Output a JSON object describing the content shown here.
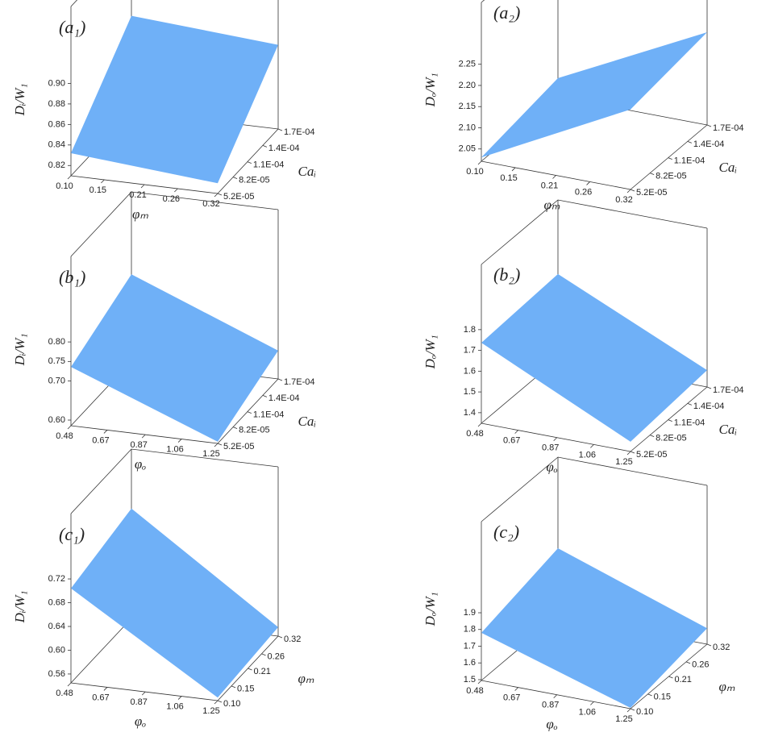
{
  "chart_data": [
    {
      "type": "surface",
      "title": "(a₁)",
      "xlabel": "φₘ",
      "ylabel": "Caᵢ",
      "zlabel": "Dᵢ/W₁",
      "color": "#6fb0f7",
      "xlim": [
        0.1,
        0.32
      ],
      "xticks": [
        {
          "value": 0.1,
          "label": "0.10"
        },
        0.15,
        0.21,
        0.26,
        0.32
      ],
      "ylim": [
        5.2e-05,
        0.00017
      ],
      "yticks": [
        {
          "value": 5.2e-05,
          "label": "5.2E-05"
        },
        {
          "value": 8.2e-05,
          "label": "8.2E-05"
        },
        {
          "value": 0.00011,
          "label": "1.1E-04"
        },
        {
          "value": 0.00014,
          "label": "1.4E-04"
        },
        {
          "value": 0.00017,
          "label": "1.7E-04"
        }
      ],
      "zlim": [
        0.81,
        0.975
      ],
      "zticks": [
        0.82,
        0.84,
        0.86,
        0.88,
        {
          "value": 0.9,
          "label": "0.90"
        }
      ],
      "values": [
        0.832,
        0.82,
        0.892,
        0.903
      ]
    },
    {
      "type": "surface",
      "title": "(a₂)",
      "xlabel": "φₘ",
      "ylabel": "Caᵢ",
      "zlabel": "Dₒ/W₁",
      "color": "#6fb0f7",
      "xlim": [
        0.1,
        0.32
      ],
      "xticks": [
        {
          "value": 0.1,
          "label": "0.10"
        },
        0.15,
        0.21,
        0.26,
        0.32
      ],
      "ylim": [
        5.2e-05,
        0.00017
      ],
      "yticks": [
        {
          "value": 5.2e-05,
          "label": "5.2E-05"
        },
        {
          "value": 8.2e-05,
          "label": "8.2E-05"
        },
        {
          "value": 0.00011,
          "label": "1.1E-04"
        },
        {
          "value": 0.00014,
          "label": "1.4E-04"
        },
        {
          "value": 0.00017,
          "label": "1.7E-04"
        }
      ],
      "zlim": [
        2.021,
        2.396
      ],
      "zticks": [
        2.05,
        {
          "value": 2.1,
          "label": "2.10"
        },
        2.15,
        {
          "value": 2.2,
          "label": "2.20"
        },
        2.25
      ],
      "values": [
        2.03,
        2.21,
        2.24,
        2.065
      ]
    },
    {
      "type": "surface",
      "title": "(b₁)",
      "xlabel": "φₒ",
      "ylabel": "Caᵢ",
      "zlabel": "Dᵢ/W₁",
      "color": "#6fb0f7",
      "xlim": [
        0.48,
        1.25
      ],
      "xticks": [
        0.48,
        0.67,
        0.87,
        1.06,
        1.25
      ],
      "ylim": [
        5.2e-05,
        0.00017
      ],
      "yticks": [
        {
          "value": 5.2e-05,
          "label": "5.2E-05"
        },
        {
          "value": 8.2e-05,
          "label": "8.2E-05"
        },
        {
          "value": 0.00011,
          "label": "1.1E-04"
        },
        {
          "value": 0.00014,
          "label": "1.4E-04"
        },
        {
          "value": 0.00017,
          "label": "1.7E-04"
        }
      ],
      "zlim": [
        0.5856,
        1.019
      ],
      "zticks": [
        {
          "value": 0.6,
          "label": "0.60"
        },
        {
          "value": 0.7,
          "label": "0.70"
        },
        0.75,
        {
          "value": 0.8,
          "label": "0.80"
        }
      ],
      "values": [
        0.736,
        0.59,
        0.658,
        0.808
      ]
    },
    {
      "type": "surface",
      "title": "(b₂)",
      "xlabel": "φₒ",
      "ylabel": "Caᵢ",
      "zlabel": "Dₒ/W₁",
      "color": "#6fb0f7",
      "xlim": [
        0.48,
        1.25
      ],
      "xticks": [
        0.48,
        0.67,
        0.87,
        1.06,
        1.25
      ],
      "ylim": [
        5.2e-05,
        0.00017
      ],
      "yticks": [
        {
          "value": 5.2e-05,
          "label": "5.2E-05"
        },
        {
          "value": 8.2e-05,
          "label": "8.2E-05"
        },
        {
          "value": 0.00011,
          "label": "1.1E-04"
        },
        {
          "value": 0.00014,
          "label": "1.4E-04"
        },
        {
          "value": 0.00017,
          "label": "1.7E-04"
        }
      ],
      "zlim": [
        1.349,
        2.114
      ],
      "zticks": [
        1.4,
        1.5,
        1.6,
        1.7,
        1.8
      ],
      "values": [
        1.737,
        1.396,
        1.43,
        1.757
      ]
    },
    {
      "type": "surface",
      "title": "(c₁)",
      "xlabel": "φₒ",
      "ylabel": "φₘ",
      "zlabel": "Dᵢ/W₁",
      "color": "#6fb0f7",
      "xlim": [
        0.48,
        1.25
      ],
      "xticks": [
        0.48,
        0.67,
        0.87,
        1.06,
        1.25
      ],
      "ylim": [
        0.1,
        0.32
      ],
      "yticks": [
        {
          "value": 0.1,
          "label": "0.10"
        },
        0.15,
        0.21,
        0.26,
        0.32
      ],
      "zlim": [
        0.545,
        0.83
      ],
      "zticks": [
        0.56,
        {
          "value": 0.6,
          "label": "0.60"
        },
        0.64,
        0.68,
        0.72
      ],
      "values": [
        0.704,
        0.55,
        0.56,
        0.73
      ]
    },
    {
      "type": "surface",
      "title": "(c₂)",
      "xlabel": "φₒ",
      "ylabel": "φₘ",
      "zlabel": "Dₒ/W₁",
      "color": "#6fb0f7",
      "xlim": [
        0.48,
        1.25
      ],
      "xticks": [
        0.48,
        0.67,
        0.87,
        1.06,
        1.25
      ],
      "ylim": [
        0.1,
        0.32
      ],
      "yticks": [
        {
          "value": 0.1,
          "label": "0.10"
        },
        0.15,
        0.21,
        0.26,
        0.32
      ],
      "zlim": [
        1.495,
        2.445
      ],
      "zticks": [
        1.5,
        1.6,
        1.7,
        1.8,
        1.9
      ],
      "values": [
        1.78,
        1.5,
        1.59,
        1.9
      ]
    }
  ]
}
